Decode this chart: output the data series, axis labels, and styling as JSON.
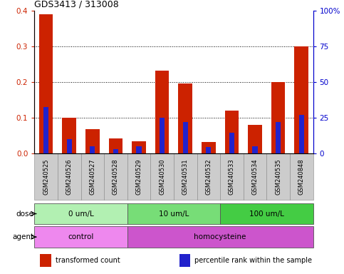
{
  "title": "GDS3413 / 313008",
  "samples": [
    "GSM240525",
    "GSM240526",
    "GSM240527",
    "GSM240528",
    "GSM240529",
    "GSM240530",
    "GSM240531",
    "GSM240532",
    "GSM240533",
    "GSM240534",
    "GSM240535",
    "GSM240848"
  ],
  "red_values": [
    0.39,
    0.1,
    0.068,
    0.042,
    0.035,
    0.232,
    0.197,
    0.032,
    0.12,
    0.08,
    0.2,
    0.3
  ],
  "blue_values": [
    0.13,
    0.04,
    0.02,
    0.012,
    0.02,
    0.1,
    0.088,
    0.018,
    0.058,
    0.02,
    0.088,
    0.108
  ],
  "ylim_left": [
    0,
    0.4
  ],
  "ylim_right": [
    0,
    100
  ],
  "yticks_left": [
    0.0,
    0.1,
    0.2,
    0.3,
    0.4
  ],
  "yticks_right": [
    0,
    25,
    50,
    75,
    100
  ],
  "ytick_labels_right": [
    "0",
    "25",
    "50",
    "75",
    "100%"
  ],
  "dose_groups": [
    {
      "label": "0 um/L",
      "start": 0,
      "end": 3,
      "color": "#b2f0b2"
    },
    {
      "label": "10 um/L",
      "start": 4,
      "end": 7,
      "color": "#77dd77"
    },
    {
      "label": "100 um/L",
      "start": 8,
      "end": 11,
      "color": "#44cc44"
    }
  ],
  "agent_groups": [
    {
      "label": "control",
      "start": 0,
      "end": 3,
      "color": "#ee88ee"
    },
    {
      "label": "homocysteine",
      "start": 4,
      "end": 11,
      "color": "#cc55cc"
    }
  ],
  "legend_items": [
    {
      "label": "transformed count",
      "color": "#cc2200"
    },
    {
      "label": "percentile rank within the sample",
      "color": "#2222cc"
    }
  ],
  "bar_color": "#cc2200",
  "blue_color": "#2222cc",
  "tick_color_left": "#cc2200",
  "tick_color_right": "#0000cc",
  "xtick_bg": "#cccccc",
  "bg_color": "#ffffff",
  "bar_width": 0.6,
  "blue_bar_width": 0.22
}
